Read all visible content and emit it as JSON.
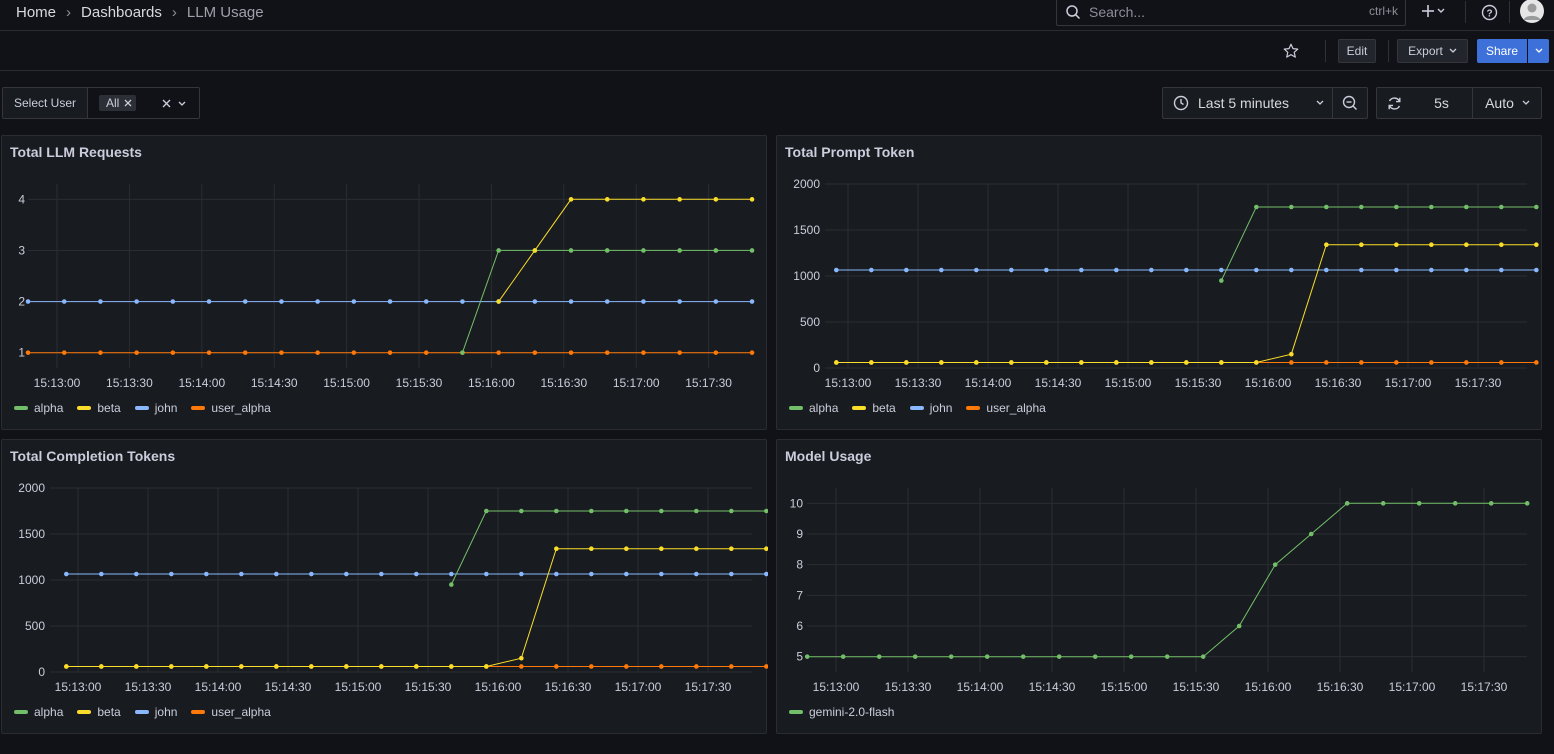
{
  "breadcrumbs": [
    "Home",
    "Dashboards",
    "LLM Usage"
  ],
  "search": {
    "placeholder": "Search...",
    "shortcut": "ctrl+k"
  },
  "toolbar": {
    "edit_label": "Edit",
    "export_label": "Export",
    "share_label": "Share"
  },
  "variables": {
    "label": "Select User",
    "selected": "All"
  },
  "time_picker": {
    "range": "Last 5 minutes",
    "refresh_interval": "5s",
    "auto_label": "Auto"
  },
  "colors": {
    "alpha": "#73bf69",
    "beta": "#fade2a",
    "john": "#8ab8ff",
    "user_alpha": "#ff780a",
    "accent": "#3d71d9"
  },
  "panels": [
    {
      "title": "Total LLM Requests",
      "legend": [
        "alpha",
        "beta",
        "john",
        "user_alpha"
      ]
    },
    {
      "title": "Total Prompt Token",
      "legend": [
        "alpha",
        "beta",
        "john",
        "user_alpha"
      ]
    },
    {
      "title": "Total Completion Tokens",
      "legend": [
        "alpha",
        "beta",
        "john",
        "user_alpha"
      ]
    },
    {
      "title": "Model Usage",
      "legend": [
        "gemini-2.0-flash"
      ]
    }
  ],
  "chart_data": [
    {
      "type": "line",
      "title": "Total LLM Requests",
      "x_ticks": [
        "15:13:00",
        "15:13:30",
        "15:14:00",
        "15:14:30",
        "15:15:00",
        "15:15:30",
        "15:16:00",
        "15:16:30",
        "15:17:00",
        "15:17:30"
      ],
      "ylim": [
        0.7,
        4.3
      ],
      "y_ticks": [
        1,
        2,
        3,
        4
      ],
      "x": [
        "15:12:48",
        "15:13:03",
        "15:13:18",
        "15:13:33",
        "15:13:48",
        "15:14:03",
        "15:14:18",
        "15:14:33",
        "15:14:48",
        "15:15:03",
        "15:15:18",
        "15:15:33",
        "15:15:48",
        "15:16:03",
        "15:16:18",
        "15:16:33",
        "15:16:48",
        "15:17:03",
        "15:17:18",
        "15:17:33",
        "15:17:48"
      ],
      "series": [
        {
          "name": "john",
          "x": [
            "15:12:48",
            "15:13:03",
            "15:13:18",
            "15:13:33",
            "15:13:48",
            "15:14:03",
            "15:14:18",
            "15:14:33",
            "15:14:48",
            "15:15:03",
            "15:15:18",
            "15:15:33",
            "15:15:48",
            "15:16:03",
            "15:16:18",
            "15:16:33",
            "15:16:48",
            "15:17:03",
            "15:17:18",
            "15:17:33",
            "15:17:48"
          ],
          "values": [
            2,
            2,
            2,
            2,
            2,
            2,
            2,
            2,
            2,
            2,
            2,
            2,
            2,
            2,
            2,
            2,
            2,
            2,
            2,
            2,
            2
          ]
        },
        {
          "name": "user_alpha",
          "x": [
            "15:12:48",
            "15:13:03",
            "15:13:18",
            "15:13:33",
            "15:13:48",
            "15:14:03",
            "15:14:18",
            "15:14:33",
            "15:14:48",
            "15:15:03",
            "15:15:18",
            "15:15:33",
            "15:15:48",
            "15:16:03",
            "15:16:18",
            "15:16:33",
            "15:16:48",
            "15:17:03",
            "15:17:18",
            "15:17:33",
            "15:17:48"
          ],
          "values": [
            1,
            1,
            1,
            1,
            1,
            1,
            1,
            1,
            1,
            1,
            1,
            1,
            1,
            1,
            1,
            1,
            1,
            1,
            1,
            1,
            1
          ]
        },
        {
          "name": "alpha",
          "x": [
            "15:15:48",
            "15:16:03",
            "15:16:18",
            "15:16:33",
            "15:16:48",
            "15:17:03",
            "15:17:18",
            "15:17:33",
            "15:17:48"
          ],
          "values": [
            1,
            3,
            3,
            3,
            3,
            3,
            3,
            3,
            3
          ]
        },
        {
          "name": "beta",
          "x": [
            "15:16:03",
            "15:16:18",
            "15:16:33",
            "15:16:48",
            "15:17:03",
            "15:17:18",
            "15:17:33",
            "15:17:48"
          ],
          "values": [
            2,
            3,
            4,
            4,
            4,
            4,
            4,
            4
          ]
        }
      ]
    },
    {
      "type": "line",
      "title": "Total Prompt Token",
      "x_ticks": [
        "15:13:00",
        "15:13:30",
        "15:14:00",
        "15:14:30",
        "15:15:00",
        "15:15:30",
        "15:16:00",
        "15:16:30",
        "15:17:00",
        "15:17:30"
      ],
      "ylim": [
        0,
        2000
      ],
      "y_ticks": [
        0,
        500,
        1000,
        1500,
        2000
      ],
      "series": [
        {
          "name": "john",
          "x": [
            "15:12:55",
            "15:13:10",
            "15:13:25",
            "15:13:40",
            "15:13:55",
            "15:14:10",
            "15:14:25",
            "15:14:40",
            "15:14:55",
            "15:15:10",
            "15:15:25",
            "15:15:40",
            "15:15:55",
            "15:16:10",
            "15:16:25",
            "15:16:40",
            "15:16:55",
            "15:17:10",
            "15:17:25",
            "15:17:40",
            "15:17:55"
          ],
          "values": [
            1065,
            1065,
            1065,
            1065,
            1065,
            1065,
            1065,
            1065,
            1065,
            1065,
            1065,
            1065,
            1065,
            1065,
            1065,
            1065,
            1065,
            1065,
            1065,
            1065,
            1065
          ]
        },
        {
          "name": "user_alpha",
          "x": [
            "15:12:55",
            "15:13:10",
            "15:13:25",
            "15:13:40",
            "15:13:55",
            "15:14:10",
            "15:14:25",
            "15:14:40",
            "15:14:55",
            "15:15:10",
            "15:15:25",
            "15:15:40",
            "15:15:55",
            "15:16:10",
            "15:16:25",
            "15:16:40",
            "15:16:55",
            "15:17:10",
            "15:17:25",
            "15:17:40",
            "15:17:55"
          ],
          "values": [
            60,
            60,
            60,
            60,
            60,
            60,
            60,
            60,
            60,
            60,
            60,
            60,
            60,
            60,
            60,
            60,
            60,
            60,
            60,
            60,
            60
          ]
        },
        {
          "name": "alpha",
          "x": [
            "15:15:40",
            "15:15:55",
            "15:16:10",
            "15:16:25",
            "15:16:40",
            "15:16:55",
            "15:17:10",
            "15:17:25",
            "15:17:40",
            "15:17:55"
          ],
          "values": [
            950,
            1750,
            1750,
            1750,
            1750,
            1750,
            1750,
            1750,
            1750,
            1750
          ]
        },
        {
          "name": "beta",
          "x": [
            "15:12:55",
            "15:13:10",
            "15:13:25",
            "15:13:40",
            "15:13:55",
            "15:14:10",
            "15:14:25",
            "15:14:40",
            "15:14:55",
            "15:15:10",
            "15:15:25",
            "15:15:40",
            "15:15:55",
            "15:16:10",
            "15:16:25",
            "15:16:40",
            "15:16:55",
            "15:17:10",
            "15:17:25",
            "15:17:40",
            "15:17:55"
          ],
          "values": [
            60,
            60,
            60,
            60,
            60,
            60,
            60,
            60,
            60,
            60,
            60,
            60,
            60,
            150,
            1340,
            1340,
            1340,
            1340,
            1340,
            1340,
            1340
          ]
        }
      ]
    },
    {
      "type": "line",
      "title": "Total Completion Tokens",
      "x_ticks": [
        "15:13:00",
        "15:13:30",
        "15:14:00",
        "15:14:30",
        "15:15:00",
        "15:15:30",
        "15:16:00",
        "15:16:30",
        "15:17:00",
        "15:17:30"
      ],
      "ylim": [
        0,
        2000
      ],
      "y_ticks": [
        0,
        500,
        1000,
        1500,
        2000
      ],
      "series": [
        {
          "name": "john",
          "x": [
            "15:12:55",
            "15:13:10",
            "15:13:25",
            "15:13:40",
            "15:13:55",
            "15:14:10",
            "15:14:25",
            "15:14:40",
            "15:14:55",
            "15:15:10",
            "15:15:25",
            "15:15:40",
            "15:15:55",
            "15:16:10",
            "15:16:25",
            "15:16:40",
            "15:16:55",
            "15:17:10",
            "15:17:25",
            "15:17:40",
            "15:17:55"
          ],
          "values": [
            1065,
            1065,
            1065,
            1065,
            1065,
            1065,
            1065,
            1065,
            1065,
            1065,
            1065,
            1065,
            1065,
            1065,
            1065,
            1065,
            1065,
            1065,
            1065,
            1065,
            1065
          ]
        },
        {
          "name": "user_alpha",
          "x": [
            "15:12:55",
            "15:13:10",
            "15:13:25",
            "15:13:40",
            "15:13:55",
            "15:14:10",
            "15:14:25",
            "15:14:40",
            "15:14:55",
            "15:15:10",
            "15:15:25",
            "15:15:40",
            "15:15:55",
            "15:16:10",
            "15:16:25",
            "15:16:40",
            "15:16:55",
            "15:17:10",
            "15:17:25",
            "15:17:40",
            "15:17:55"
          ],
          "values": [
            60,
            60,
            60,
            60,
            60,
            60,
            60,
            60,
            60,
            60,
            60,
            60,
            60,
            60,
            60,
            60,
            60,
            60,
            60,
            60,
            60
          ]
        },
        {
          "name": "alpha",
          "x": [
            "15:15:40",
            "15:15:55",
            "15:16:10",
            "15:16:25",
            "15:16:40",
            "15:16:55",
            "15:17:10",
            "15:17:25",
            "15:17:40",
            "15:17:55"
          ],
          "values": [
            950,
            1750,
            1750,
            1750,
            1750,
            1750,
            1750,
            1750,
            1750,
            1750
          ]
        },
        {
          "name": "beta",
          "x": [
            "15:12:55",
            "15:13:10",
            "15:13:25",
            "15:13:40",
            "15:13:55",
            "15:14:10",
            "15:14:25",
            "15:14:40",
            "15:14:55",
            "15:15:10",
            "15:15:25",
            "15:15:40",
            "15:15:55",
            "15:16:10",
            "15:16:25",
            "15:16:40",
            "15:16:55",
            "15:17:10",
            "15:17:25",
            "15:17:40",
            "15:17:55"
          ],
          "values": [
            60,
            60,
            60,
            60,
            60,
            60,
            60,
            60,
            60,
            60,
            60,
            60,
            60,
            150,
            1340,
            1340,
            1340,
            1340,
            1340,
            1340,
            1340
          ]
        }
      ]
    },
    {
      "type": "line",
      "title": "Model Usage",
      "x_ticks": [
        "15:13:00",
        "15:13:30",
        "15:14:00",
        "15:14:30",
        "15:15:00",
        "15:15:30",
        "15:16:00",
        "15:16:30",
        "15:17:00",
        "15:17:30"
      ],
      "ylim": [
        4.5,
        10.5
      ],
      "y_ticks": [
        5,
        6,
        7,
        8,
        9,
        10
      ],
      "series": [
        {
          "name": "gemini-2.0-flash",
          "x": [
            "15:12:48",
            "15:13:03",
            "15:13:18",
            "15:13:33",
            "15:13:48",
            "15:14:03",
            "15:14:18",
            "15:14:33",
            "15:14:48",
            "15:15:03",
            "15:15:18",
            "15:15:33",
            "15:15:48",
            "15:16:03",
            "15:16:18",
            "15:16:33",
            "15:16:48",
            "15:17:03",
            "15:17:18",
            "15:17:33",
            "15:17:48"
          ],
          "values": [
            5,
            5,
            5,
            5,
            5,
            5,
            5,
            5,
            5,
            5,
            5,
            5,
            6,
            8,
            9,
            10,
            10,
            10,
            10,
            10,
            10
          ]
        }
      ]
    }
  ]
}
